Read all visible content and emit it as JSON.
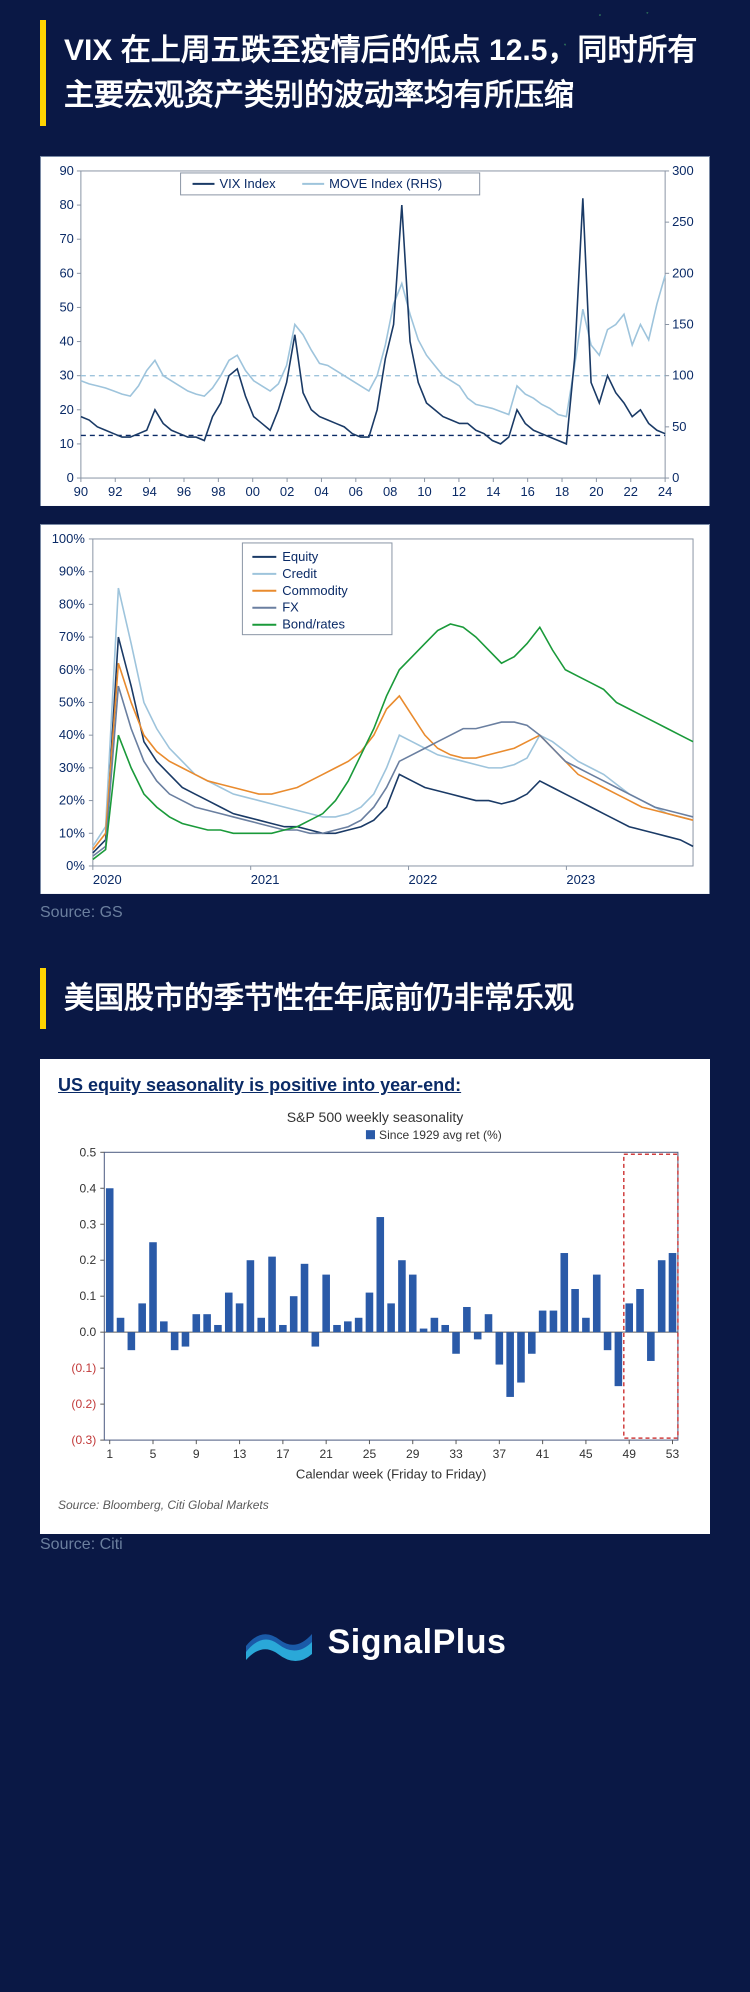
{
  "heading1": "VIX 在上周五跌至疫情后的低点 12.5，同时所有主要宏观资产类别的波动率均有所压缩",
  "heading2": "美国股市的季节性在年底前仍非常乐观",
  "source1": "Source: GS",
  "source2": "Source: Citi",
  "logo_text": "SignalPlus",
  "chart_vix": {
    "type": "line-dual-axis",
    "background_color": "#ffffff",
    "grid_color": "#8a95a5",
    "tick_fontsize": 13,
    "tick_color": "#0a2a66",
    "x_labels": [
      "90",
      "92",
      "94",
      "96",
      "98",
      "00",
      "02",
      "04",
      "06",
      "08",
      "10",
      "12",
      "14",
      "16",
      "18",
      "20",
      "22",
      "24"
    ],
    "y_left": {
      "min": 0,
      "max": 90,
      "step": 10
    },
    "y_right": {
      "min": 0,
      "max": 300,
      "step": 50
    },
    "ref_lines": [
      {
        "y_left": 12.5,
        "color": "#0a2a66",
        "dash": "5,4"
      },
      {
        "y_left": 30,
        "color": "#9ec4dc",
        "dash": "5,4"
      }
    ],
    "legend": [
      {
        "label": "VIX Index",
        "color": "#1a3a66"
      },
      {
        "label": "MOVE Index (RHS)",
        "color": "#9ec4dc"
      }
    ],
    "n_points": 72,
    "series_vix": [
      18,
      17,
      15,
      14,
      13,
      12,
      12,
      13,
      14,
      20,
      16,
      14,
      13,
      12,
      12,
      11,
      18,
      22,
      30,
      32,
      24,
      18,
      16,
      14,
      20,
      28,
      42,
      25,
      20,
      18,
      17,
      16,
      15,
      13,
      12,
      12,
      20,
      35,
      45,
      80,
      40,
      28,
      22,
      20,
      18,
      17,
      16,
      16,
      14,
      13,
      11,
      10,
      12,
      20,
      16,
      14,
      13,
      12,
      11,
      10,
      35,
      82,
      28,
      22,
      30,
      25,
      22,
      18,
      20,
      16,
      14,
      13
    ],
    "series_move": [
      95,
      92,
      90,
      88,
      85,
      82,
      80,
      90,
      105,
      115,
      100,
      95,
      90,
      85,
      82,
      80,
      88,
      100,
      115,
      120,
      105,
      95,
      90,
      85,
      92,
      110,
      150,
      140,
      125,
      112,
      110,
      105,
      100,
      95,
      90,
      85,
      100,
      130,
      170,
      190,
      160,
      135,
      120,
      110,
      100,
      95,
      90,
      78,
      72,
      70,
      68,
      65,
      62,
      90,
      82,
      78,
      72,
      68,
      62,
      60,
      110,
      165,
      130,
      120,
      145,
      150,
      160,
      130,
      150,
      135,
      170,
      198
    ],
    "line_width": 1.6
  },
  "chart_vol_pct": {
    "type": "line-percent",
    "background_color": "#ffffff",
    "grid_color": "#8a95a5",
    "tick_fontsize": 13,
    "tick_color": "#0a2a66",
    "x_labels": [
      "2020",
      "2021",
      "2022",
      "2023"
    ],
    "y": {
      "min": 0,
      "max": 100,
      "step": 10,
      "suffix": "%"
    },
    "legend": [
      {
        "label": "Equity",
        "color": "#1a3a66"
      },
      {
        "label": "Credit",
        "color": "#9ec4dc"
      },
      {
        "label": "Commodity",
        "color": "#e98b2e"
      },
      {
        "label": "FX",
        "color": "#6a7fa0"
      },
      {
        "label": "Bond/rates",
        "color": "#1a9a3a"
      }
    ],
    "n_points": 48,
    "series": {
      "Equity": [
        4,
        8,
        70,
        55,
        38,
        32,
        28,
        24,
        22,
        20,
        18,
        16,
        15,
        14,
        13,
        12,
        12,
        11,
        10,
        10,
        11,
        12,
        14,
        18,
        28,
        26,
        24,
        23,
        22,
        21,
        20,
        20,
        19,
        20,
        22,
        26,
        24,
        22,
        20,
        18,
        16,
        14,
        12,
        11,
        10,
        9,
        8,
        6
      ],
      "Credit": [
        6,
        12,
        85,
        68,
        50,
        42,
        36,
        32,
        28,
        26,
        24,
        22,
        21,
        20,
        19,
        18,
        17,
        16,
        15,
        15,
        16,
        18,
        22,
        30,
        40,
        38,
        36,
        34,
        33,
        32,
        31,
        30,
        30,
        31,
        33,
        40,
        38,
        35,
        32,
        30,
        28,
        25,
        22,
        20,
        18,
        16,
        15,
        14
      ],
      "Commodity": [
        5,
        10,
        62,
        50,
        40,
        35,
        32,
        30,
        28,
        26,
        25,
        24,
        23,
        22,
        22,
        23,
        24,
        26,
        28,
        30,
        32,
        35,
        40,
        48,
        52,
        46,
        40,
        36,
        34,
        33,
        33,
        34,
        35,
        36,
        38,
        40,
        36,
        32,
        28,
        26,
        24,
        22,
        20,
        18,
        17,
        16,
        15,
        14
      ],
      "FX": [
        3,
        6,
        55,
        42,
        32,
        26,
        22,
        20,
        18,
        17,
        16,
        15,
        14,
        13,
        12,
        11,
        11,
        10,
        10,
        11,
        12,
        14,
        18,
        24,
        32,
        34,
        36,
        38,
        40,
        42,
        42,
        43,
        44,
        44,
        43,
        40,
        36,
        32,
        30,
        28,
        26,
        24,
        22,
        20,
        18,
        17,
        16,
        15
      ],
      "Bond/rates": [
        2,
        5,
        40,
        30,
        22,
        18,
        15,
        13,
        12,
        11,
        11,
        10,
        10,
        10,
        10,
        11,
        12,
        14,
        16,
        20,
        26,
        34,
        42,
        52,
        60,
        64,
        68,
        72,
        74,
        73,
        70,
        66,
        62,
        64,
        68,
        73,
        66,
        60,
        58,
        56,
        54,
        50,
        48,
        46,
        44,
        42,
        40,
        38
      ]
    },
    "line_width": 1.6
  },
  "chart_seasonality": {
    "type": "bar",
    "background_color": "#ffffff",
    "border_color": "#4b5a80",
    "subhead": "US equity seasonality is positive into year-end:",
    "title": "S&P 500 weekly seasonality",
    "legend_label": "Since 1929 avg ret (%)",
    "bar_color": "#2a5aa8",
    "axis_color": "#5a5a5a",
    "neg_label_color": "#c23a3a",
    "tick_fontsize": 12,
    "xlabel": "Calendar week (Friday to Friday)",
    "x_ticks": [
      1,
      5,
      9,
      13,
      17,
      21,
      25,
      29,
      33,
      37,
      41,
      45,
      49,
      53
    ],
    "y": {
      "min": -0.3,
      "max": 0.5,
      "pos_ticks": [
        0,
        0.1,
        0.2,
        0.3,
        0.4,
        0.5
      ],
      "neg_ticks": [
        -0.1,
        -0.2,
        -0.3
      ]
    },
    "highlight_box": {
      "from_week": 49,
      "to_week": 53,
      "color": "#d04040",
      "dash": "4,3"
    },
    "footnote": "Source: Bloomberg, Citi Global Markets",
    "values": [
      0.4,
      0.04,
      -0.05,
      0.08,
      0.25,
      0.03,
      -0.05,
      -0.04,
      0.05,
      0.05,
      0.02,
      0.11,
      0.08,
      0.2,
      0.04,
      0.21,
      0.02,
      0.1,
      0.19,
      -0.04,
      0.16,
      0.02,
      0.03,
      0.04,
      0.11,
      0.32,
      0.08,
      0.2,
      0.16,
      0.01,
      0.04,
      0.02,
      -0.06,
      0.07,
      -0.02,
      0.05,
      -0.09,
      -0.18,
      -0.14,
      -0.06,
      0.06,
      0.06,
      0.22,
      0.12,
      0.04,
      0.16,
      -0.05,
      -0.15,
      0.08,
      0.12,
      -0.08,
      0.2,
      0.22
    ]
  }
}
